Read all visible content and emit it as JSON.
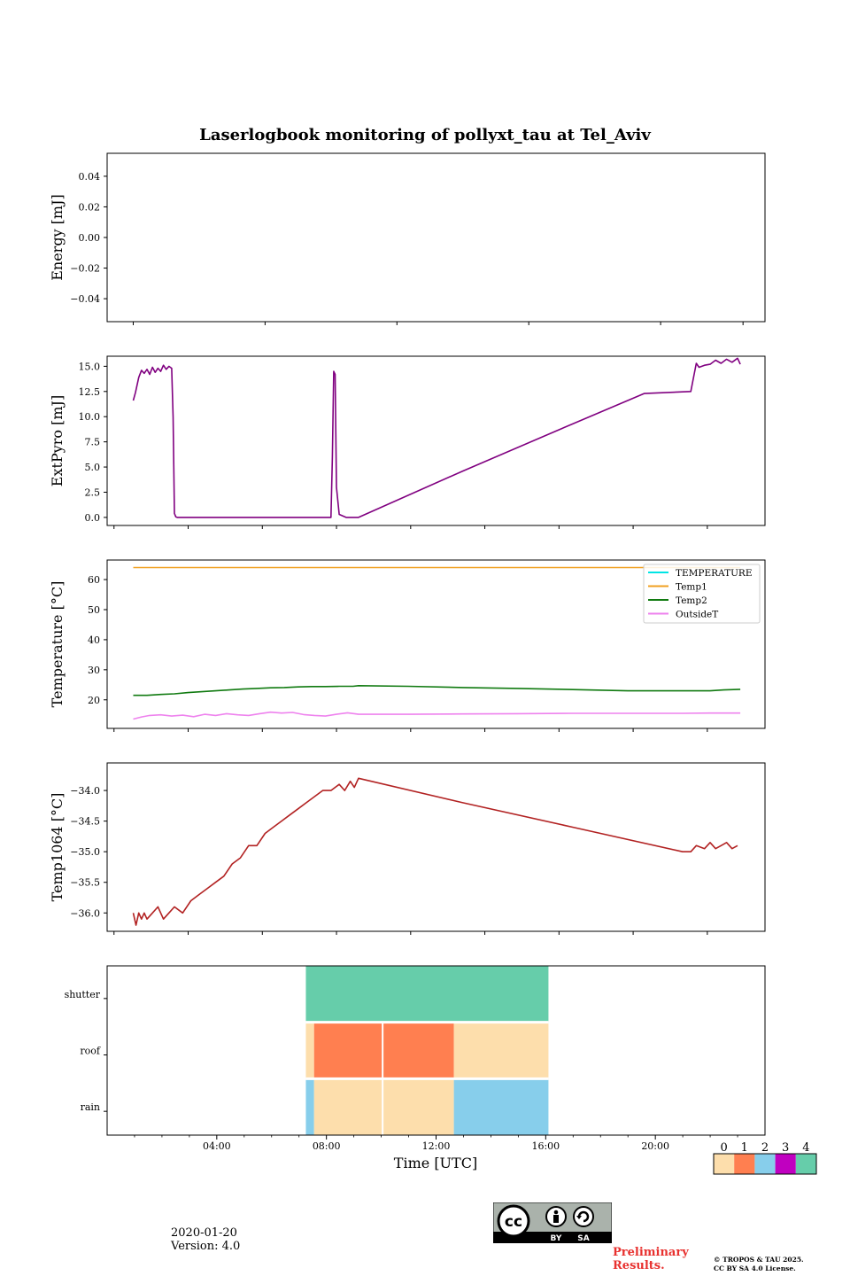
{
  "figure": {
    "title": "Laserlogbook monitoring of pollyxt_tau at Tel_Aviv",
    "date": "2020-01-20",
    "version": "Version: 4.0",
    "preliminary": [
      "Preliminary",
      "Results."
    ],
    "copyright": [
      "© TROPOS & TAU 2025.",
      "CC BY SA 4.0 License."
    ],
    "license_badge": [
      "BY",
      "SA"
    ]
  },
  "chart_data": [
    {
      "type": "line",
      "panel": "energy",
      "ylabel": "Energy [mJ]",
      "ylim": [
        -0.055,
        0.055
      ],
      "yticks": [
        -0.04,
        -0.02,
        0.0,
        0.02,
        0.04
      ],
      "ytick_labels": [
        "−0.04",
        "−0.02",
        "0.00",
        "0.02",
        "0.04"
      ],
      "series": []
    },
    {
      "type": "line",
      "panel": "extpyro",
      "ylabel": "ExtPyro [mJ]",
      "ylim": [
        -0.8,
        16.0
      ],
      "yticks": [
        0,
        2.5,
        5,
        7.5,
        10,
        12.5,
        15
      ],
      "ytick_labels": [
        "0.0",
        "2.5",
        "5.0",
        "7.5",
        "10.0",
        "12.5",
        "15.0"
      ],
      "color": "#800080",
      "series": [
        {
          "x": [
            1.0,
            1.08,
            1.2,
            1.3,
            1.4,
            1.5,
            1.6,
            1.7,
            1.8,
            1.9,
            2.0,
            2.1,
            2.2,
            2.3,
            2.4,
            2.45,
            2.5,
            2.55,
            2.6,
            3.5,
            5.0,
            6.5,
            7.5,
            8.2,
            8.25,
            8.3,
            8.35,
            8.4,
            8.5,
            8.75,
            9.2,
            13.0,
            16.5,
            19.6,
            21.3,
            21.5,
            21.6,
            21.8,
            22.0,
            22.2,
            22.4,
            22.6,
            22.8,
            23.0,
            23.1
          ],
          "y": [
            11.6,
            12.4,
            13.9,
            14.6,
            14.3,
            14.7,
            14.2,
            14.9,
            14.4,
            14.8,
            14.5,
            15.1,
            14.7,
            15.0,
            14.8,
            10.0,
            0.4,
            0.05,
            0.0,
            0.0,
            0.0,
            0.0,
            0.0,
            0.0,
            6.0,
            14.5,
            14.2,
            3.0,
            0.3,
            0.0,
            0.0,
            4.6,
            8.7,
            12.3,
            12.5,
            15.3,
            14.9,
            15.1,
            15.2,
            15.6,
            15.3,
            15.7,
            15.4,
            15.8,
            15.2
          ]
        }
      ]
    },
    {
      "type": "line",
      "panel": "temperature",
      "ylabel": "Temperature [°C]",
      "ylim": [
        10.5,
        66.5
      ],
      "yticks": [
        20,
        30,
        40,
        50,
        60
      ],
      "ytick_labels": [
        "20",
        "30",
        "40",
        "50",
        "60"
      ],
      "legend": "top-right",
      "series": [
        {
          "name": "TEMPERATURE",
          "color": "#00e5e5",
          "x": [],
          "y": []
        },
        {
          "name": "Temp1",
          "color": "#f0a020",
          "x": [
            1.0,
            5.0,
            9.0,
            13.0,
            17.0,
            20.5,
            23.1
          ],
          "y": [
            64,
            64,
            64,
            64,
            64,
            64,
            64
          ]
        },
        {
          "name": "Temp2",
          "color": "#107a10",
          "x": [
            1.0,
            1.5,
            2.0,
            2.5,
            3.0,
            3.5,
            4.0,
            4.5,
            5.0,
            5.5,
            6.0,
            6.5,
            7.0,
            7.5,
            8.0,
            8.5,
            9.0,
            9.2,
            11.0,
            13.0,
            15.0,
            17.0,
            19.0,
            21.0,
            22.0,
            22.5,
            23.1
          ],
          "y": [
            21.5,
            21.5,
            21.8,
            22.0,
            22.4,
            22.7,
            23.0,
            23.3,
            23.6,
            23.8,
            24.0,
            24.1,
            24.3,
            24.4,
            24.4,
            24.5,
            24.5,
            24.7,
            24.5,
            24.1,
            23.8,
            23.4,
            23.0,
            23.0,
            23.0,
            23.3,
            23.5
          ]
        },
        {
          "name": "OutsideT",
          "color": "#ee82ee",
          "x": [
            1.0,
            1.3,
            1.6,
            2.0,
            2.4,
            2.8,
            3.2,
            3.6,
            4.0,
            4.4,
            4.8,
            5.2,
            5.6,
            6.0,
            6.4,
            6.8,
            7.2,
            7.6,
            8.0,
            8.4,
            8.8,
            9.2,
            11.0,
            13.0,
            15.0,
            17.0,
            19.0,
            21.0,
            22.0,
            23.1
          ],
          "y": [
            13.6,
            14.3,
            14.8,
            15.0,
            14.6,
            14.9,
            14.4,
            15.2,
            14.8,
            15.4,
            15.0,
            14.8,
            15.4,
            15.9,
            15.6,
            15.8,
            15.1,
            14.8,
            14.6,
            15.2,
            15.7,
            15.2,
            15.2,
            15.3,
            15.4,
            15.5,
            15.5,
            15.5,
            15.6,
            15.6
          ]
        }
      ]
    },
    {
      "type": "line",
      "panel": "temp1064",
      "ylabel": "Temp1064 [°C]",
      "ylim": [
        -36.3,
        -33.55
      ],
      "yticks": [
        -36.0,
        -35.5,
        -35.0,
        -34.5,
        -34.0
      ],
      "ytick_labels": [
        "−36.0",
        "−35.5",
        "−35.0",
        "−34.5",
        "−34.0"
      ],
      "color": "#b22222",
      "series": [
        {
          "x": [
            1.0,
            1.1,
            1.2,
            1.3,
            1.4,
            1.5,
            1.7,
            1.9,
            2.1,
            2.3,
            2.5,
            2.8,
            3.1,
            3.4,
            3.7,
            4.0,
            4.3,
            4.6,
            4.9,
            5.2,
            5.5,
            5.8,
            6.1,
            6.4,
            6.7,
            7.0,
            7.3,
            7.6,
            7.9,
            8.2,
            8.5,
            8.7,
            8.9,
            9.05,
            9.2,
            13.0,
            17.0,
            21.0,
            21.3,
            21.5,
            21.8,
            22.0,
            22.2,
            22.4,
            22.6,
            22.8,
            23.0
          ],
          "y": [
            -36.0,
            -36.2,
            -36.0,
            -36.1,
            -36.0,
            -36.1,
            -36.0,
            -35.9,
            -36.1,
            -36.0,
            -35.9,
            -36.0,
            -35.8,
            -35.7,
            -35.6,
            -35.5,
            -35.4,
            -35.2,
            -35.1,
            -34.9,
            -34.9,
            -34.7,
            -34.6,
            -34.5,
            -34.4,
            -34.3,
            -34.2,
            -34.1,
            -34.0,
            -34.0,
            -33.9,
            -34.0,
            -33.85,
            -33.95,
            -33.8,
            -34.2,
            -34.6,
            -35.0,
            -35.0,
            -34.9,
            -34.95,
            -34.85,
            -34.95,
            -34.9,
            -34.85,
            -34.95,
            -34.9
          ]
        }
      ]
    },
    {
      "type": "heatmap",
      "panel": "status",
      "xlabel": "Time [UTC]",
      "xticks": [
        4,
        8,
        12,
        16,
        20
      ],
      "xtick_labels": [
        "04:00",
        "08:00",
        "12:00",
        "16:00",
        "20:00"
      ],
      "rows": [
        "shutter",
        "roof",
        "rain"
      ],
      "colorbar": {
        "labels": [
          "0",
          "1",
          "2",
          "3",
          "4"
        ],
        "colors": [
          "#fddeac",
          "#ff7f50",
          "#87ceeb",
          "#c000c0",
          "#66cdaa"
        ]
      },
      "segments": {
        "shutter": [
          {
            "start": 7.25,
            "end": 16.1,
            "value": 4
          }
        ],
        "roof": [
          {
            "start": 7.25,
            "end": 7.55,
            "value": 0
          },
          {
            "start": 7.55,
            "end": 12.65,
            "value": 1
          },
          {
            "start": 12.65,
            "end": 16.1,
            "value": 0
          }
        ],
        "rain": [
          {
            "start": 7.25,
            "end": 7.55,
            "value": 2
          },
          {
            "start": 7.55,
            "end": 12.65,
            "value": 0
          },
          {
            "start": 12.65,
            "end": 16.1,
            "value": 2
          }
        ]
      }
    }
  ]
}
